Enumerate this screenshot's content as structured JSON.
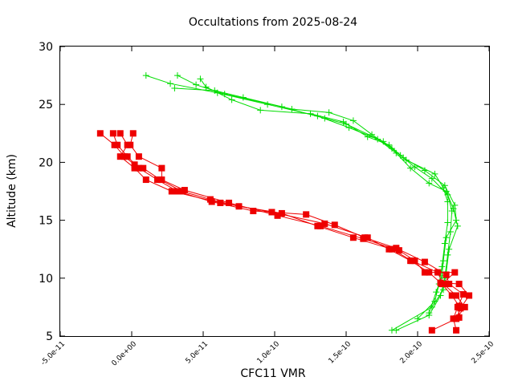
{
  "chart_data": {
    "type": "line",
    "title": "Occultations from 2025-08-24",
    "xlabel": "CFC11 VMR",
    "ylabel": "Altitude (km)",
    "xlim": [
      -5e-11,
      2.5e-10
    ],
    "ylim": [
      5,
      30
    ],
    "x_ticks": [
      "-5.0e-11",
      "0.0e+00",
      "5.0e-11",
      "1.0e-10",
      "1.5e-10",
      "2.0e-10",
      "2.5e-10"
    ],
    "x_tick_values": [
      -5e-11,
      0,
      5e-11,
      1e-10,
      1.5e-10,
      2e-10,
      2.5e-10
    ],
    "y_ticks": [
      "5",
      "10",
      "15",
      "20",
      "25",
      "30"
    ],
    "y_tick_values": [
      5,
      10,
      15,
      20,
      25,
      30
    ],
    "grid": false,
    "legend": "none",
    "colors": {
      "green": "#00dd00",
      "red": "#ee0000",
      "axis": "#000000"
    },
    "series": [
      {
        "color": "#00dd00",
        "marker": "plus",
        "points": [
          [
            1e-11,
            27.5
          ],
          [
            2.7e-11,
            26.8
          ],
          [
            6e-11,
            26.0
          ],
          [
            9.5e-11,
            25.0
          ],
          [
            1.3e-10,
            24.0
          ],
          [
            1.52e-10,
            23.0
          ],
          [
            1.72e-10,
            22.0
          ],
          [
            1.85e-10,
            20.8
          ],
          [
            1.95e-10,
            19.5
          ],
          [
            2.08e-10,
            18.2
          ],
          [
            2.2e-10,
            17.5
          ],
          [
            2.25e-10,
            16.0
          ],
          [
            2.28e-10,
            14.5
          ],
          [
            2.22e-10,
            12.5
          ],
          [
            2.2e-10,
            10.5
          ],
          [
            2.18e-10,
            9.0
          ],
          [
            2.1e-10,
            7.5
          ],
          [
            1.82e-10,
            5.5
          ]
        ]
      },
      {
        "color": "#00dd00",
        "marker": "plus",
        "points": [
          [
            3.2e-11,
            27.5
          ],
          [
            4.5e-11,
            26.7
          ],
          [
            6.5e-11,
            25.9
          ],
          [
            1.05e-10,
            24.8
          ],
          [
            1.35e-10,
            23.8
          ],
          [
            1.5e-10,
            23.3
          ],
          [
            1.76e-10,
            21.8
          ],
          [
            1.88e-10,
            20.6
          ],
          [
            1.98e-10,
            19.6
          ],
          [
            2.1e-10,
            18.6
          ],
          [
            2.21e-10,
            17.2
          ],
          [
            2.24e-10,
            15.8
          ],
          [
            2.23e-10,
            14.0
          ],
          [
            2.21e-10,
            12.0
          ],
          [
            2.19e-10,
            10.0
          ],
          [
            2.16e-10,
            8.5
          ],
          [
            2.08e-10,
            6.8
          ],
          [
            1.85e-10,
            5.5
          ]
        ]
      },
      {
        "color": "#00dd00",
        "marker": "plus",
        "points": [
          [
            3e-11,
            26.4
          ],
          [
            5.8e-11,
            26.2
          ],
          [
            7.8e-11,
            25.6
          ],
          [
            1.12e-10,
            24.6
          ],
          [
            1.38e-10,
            24.3
          ],
          [
            1.55e-10,
            23.6
          ],
          [
            1.68e-10,
            22.4
          ],
          [
            1.82e-10,
            21.2
          ],
          [
            1.92e-10,
            20.2
          ],
          [
            2.12e-10,
            19.0
          ],
          [
            2.18e-10,
            17.8
          ],
          [
            2.21e-10,
            16.6
          ],
          [
            2.21e-10,
            14.8
          ],
          [
            2.19e-10,
            13.0
          ],
          [
            2.17e-10,
            11.0
          ],
          [
            2.15e-10,
            9.5
          ],
          [
            2.12e-10,
            8.0
          ],
          [
            2e-10,
            6.5
          ]
        ]
      },
      {
        "color": "#00dd00",
        "marker": "plus",
        "points": [
          [
            4.8e-11,
            27.2
          ],
          [
            5.2e-11,
            26.5
          ],
          [
            7e-11,
            25.4
          ],
          [
            9e-11,
            24.5
          ],
          [
            1.25e-10,
            24.2
          ],
          [
            1.48e-10,
            23.5
          ],
          [
            1.65e-10,
            22.2
          ],
          [
            1.8e-10,
            21.5
          ],
          [
            1.9e-10,
            20.4
          ],
          [
            2.05e-10,
            19.3
          ],
          [
            2.19e-10,
            18.0
          ],
          [
            2.26e-10,
            16.3
          ],
          [
            2.27e-10,
            15.0
          ],
          [
            2.2e-10,
            13.5
          ],
          [
            2.18e-10,
            11.5
          ],
          [
            2.17e-10,
            10.2
          ],
          [
            2.13e-10,
            8.8
          ],
          [
            2.08e-10,
            7.0
          ]
        ]
      },
      {
        "color": "#ee0000",
        "marker": "square",
        "points": [
          [
            -2.2e-11,
            22.5
          ],
          [
            -1.2e-11,
            21.5
          ],
          [
            -5e-12,
            20.5
          ],
          [
            2e-12,
            19.8
          ],
          [
            8e-12,
            19.5
          ],
          [
            2e-11,
            18.5
          ],
          [
            3.5e-11,
            17.5
          ],
          [
            5.5e-11,
            16.8
          ],
          [
            7.5e-11,
            16.2
          ],
          [
            1.05e-10,
            15.6
          ],
          [
            1.3e-10,
            14.5
          ],
          [
            1.55e-10,
            13.5
          ],
          [
            1.82e-10,
            12.5
          ],
          [
            1.96e-10,
            11.5
          ],
          [
            2.14e-10,
            10.5
          ],
          [
            2.18e-10,
            9.5
          ],
          [
            2.27e-10,
            8.5
          ],
          [
            2.33e-10,
            7.5
          ],
          [
            2.27e-10,
            6.5
          ],
          [
            2.1e-10,
            5.5
          ]
        ]
      },
      {
        "color": "#ee0000",
        "marker": "square",
        "points": [
          [
            -1.3e-11,
            22.5
          ],
          [
            -1e-11,
            21.5
          ],
          [
            -3e-12,
            20.5
          ],
          [
            5e-12,
            19.5
          ],
          [
            1.8e-11,
            18.5
          ],
          [
            3.2e-11,
            17.5
          ],
          [
            5.6e-11,
            16.6
          ],
          [
            8.5e-11,
            15.8
          ],
          [
            1.22e-10,
            15.5
          ],
          [
            1.42e-10,
            14.6
          ],
          [
            1.63e-10,
            13.5
          ],
          [
            1.85e-10,
            12.6
          ],
          [
            2.05e-10,
            11.4
          ],
          [
            2.2e-10,
            10.3
          ],
          [
            2.22e-10,
            9.5
          ],
          [
            2.32e-10,
            8.6
          ],
          [
            2.28e-10,
            7.5
          ],
          [
            2.25e-10,
            6.5
          ],
          [
            2.27e-10,
            5.5
          ]
        ]
      },
      {
        "color": "#ee0000",
        "marker": "square",
        "points": [
          [
            -8e-12,
            22.5
          ],
          [
            -3e-12,
            21.5
          ],
          [
            -8e-12,
            20.5
          ],
          [
            2e-12,
            19.5
          ],
          [
            1e-11,
            18.5
          ],
          [
            2.8e-11,
            17.5
          ],
          [
            6.2e-11,
            16.5
          ],
          [
            9.8e-11,
            15.7
          ],
          [
            1.35e-10,
            14.7
          ],
          [
            1.65e-10,
            13.5
          ],
          [
            1.8e-10,
            12.5
          ],
          [
            1.95e-10,
            11.5
          ],
          [
            2.08e-10,
            10.5
          ],
          [
            2.16e-10,
            9.6
          ],
          [
            2.29e-10,
            9.5
          ],
          [
            2.36e-10,
            8.5
          ],
          [
            2.3e-10,
            7.4
          ],
          [
            2.27e-10,
            6.5
          ]
        ]
      },
      {
        "color": "#ee0000",
        "marker": "square",
        "points": [
          [
            1e-12,
            22.5
          ],
          [
            -1e-12,
            21.5
          ],
          [
            5e-12,
            20.5
          ],
          [
            2.1e-11,
            19.5
          ],
          [
            2.1e-11,
            18.5
          ],
          [
            3.7e-11,
            17.6
          ],
          [
            6.8e-11,
            16.5
          ],
          [
            1.02e-10,
            15.4
          ],
          [
            1.32e-10,
            14.5
          ],
          [
            1.62e-10,
            13.4
          ],
          [
            1.87e-10,
            12.4
          ],
          [
            1.98e-10,
            11.5
          ],
          [
            2.05e-10,
            10.5
          ],
          [
            2.26e-10,
            10.5
          ],
          [
            2.17e-10,
            9.5
          ],
          [
            2.24e-10,
            8.5
          ],
          [
            2.29e-10,
            7.6
          ],
          [
            2.29e-10,
            6.6
          ]
        ]
      }
    ]
  }
}
